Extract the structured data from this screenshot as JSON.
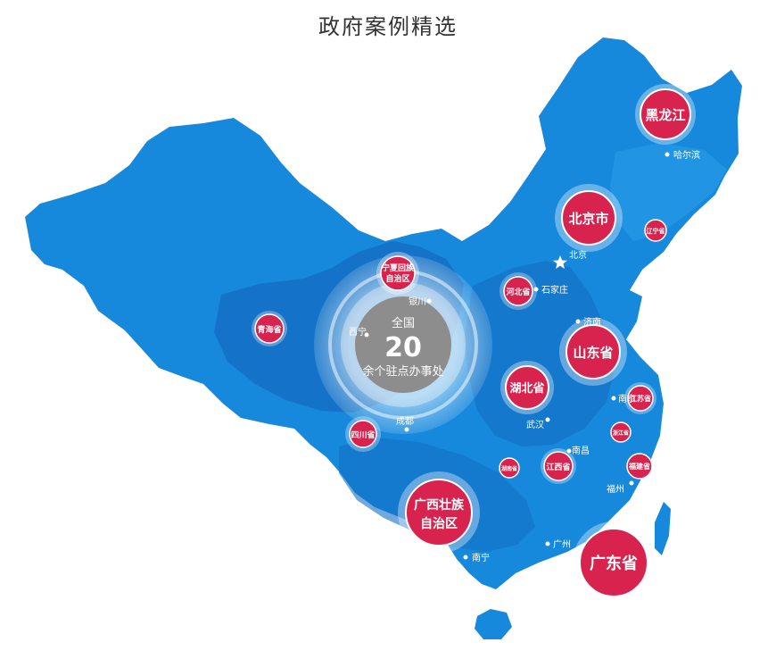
{
  "title": "政府案例精选",
  "center": {
    "line1": "全国",
    "count": "20",
    "line3": "余个驻点办事处"
  },
  "colors": {
    "map_main": "#1689dd",
    "map_dark": "#1470c4",
    "map_light": "#2a9be8",
    "bubble": "#d9234f",
    "center_gray": "#8d8d8d"
  },
  "provinces": [
    {
      "label": "黑龙江"
    },
    {
      "label": "北京市"
    },
    {
      "label": "辽宁省"
    },
    {
      "label": "宁夏回族自治区",
      "line1": "宁夏回族",
      "line2": "自治区"
    },
    {
      "label": "河北省"
    },
    {
      "label": "青海省"
    },
    {
      "label": "山东省"
    },
    {
      "label": "湖北省"
    },
    {
      "label": "江苏省"
    },
    {
      "label": "四川省"
    },
    {
      "label": "浙江省"
    },
    {
      "label": "湖南省"
    },
    {
      "label": "江西省"
    },
    {
      "label": "福建省"
    },
    {
      "label": "广西壮族自治区",
      "line1": "广西壮族",
      "line2": "自治区"
    },
    {
      "label": "广东省"
    }
  ],
  "cities": [
    {
      "name": "哈尔滨"
    },
    {
      "name": "北京"
    },
    {
      "name": "石家庄"
    },
    {
      "name": "银川"
    },
    {
      "name": "西宁"
    },
    {
      "name": "济南"
    },
    {
      "name": "南京"
    },
    {
      "name": "武汉"
    },
    {
      "name": "成都"
    },
    {
      "name": "南昌"
    },
    {
      "name": "福州"
    },
    {
      "name": "广州"
    },
    {
      "name": "南宁"
    }
  ]
}
